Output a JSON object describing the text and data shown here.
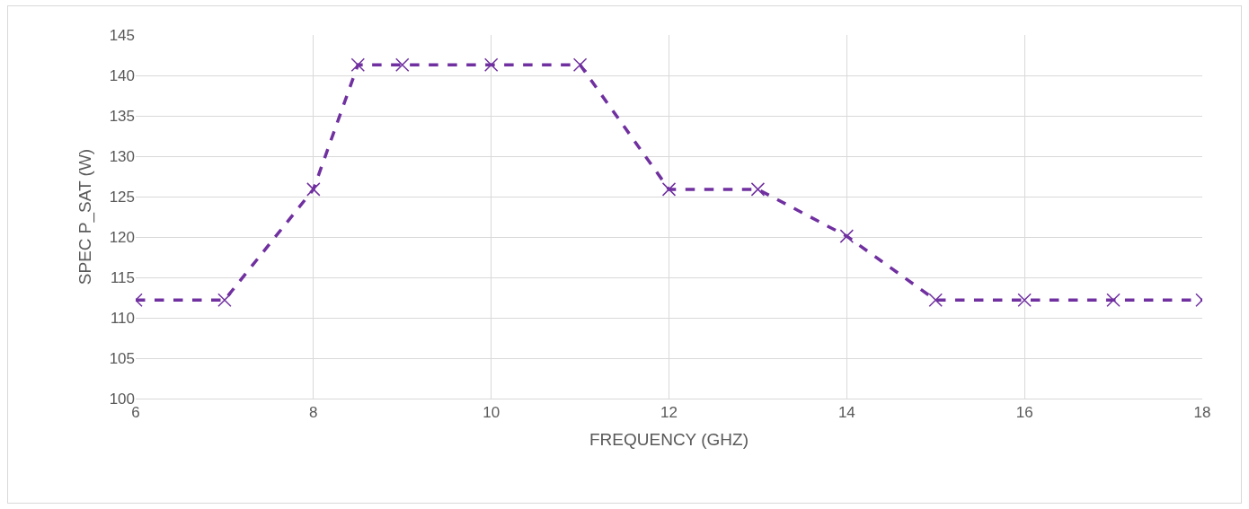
{
  "chart_data": {
    "type": "line",
    "xlabel": "FREQUENCY (GHZ)",
    "ylabel": "SPEC P_SAT (W)",
    "x": [
      6,
      7,
      8,
      8.5,
      9,
      10,
      11,
      12,
      13,
      14,
      15,
      16,
      17,
      18
    ],
    "series": [
      {
        "color": "#7030a0",
        "values": [
          112.2,
          112.2,
          125.9,
          141.3,
          141.3,
          141.3,
          141.3,
          125.9,
          125.9,
          120.1,
          112.2,
          112.2,
          112.2,
          112.2
        ]
      }
    ],
    "xlim": [
      6,
      18
    ],
    "xticks": [
      6,
      8,
      10,
      12,
      14,
      16,
      18
    ],
    "ylim": [
      100,
      145
    ],
    "yticks": [
      100,
      105,
      110,
      115,
      120,
      125,
      130,
      135,
      140,
      145
    ],
    "grid": true,
    "marker": "cross",
    "line_style": "dashed"
  }
}
